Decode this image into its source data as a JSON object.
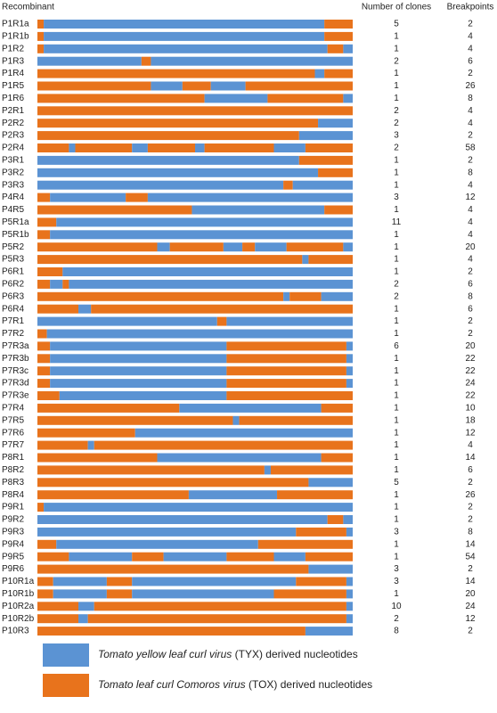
{
  "header": {
    "recombinant": "Recombinant",
    "clones": "Number of clones",
    "breakpoints": "Breakpoints"
  },
  "legend": [
    {
      "name": "Tomato yellow leaf curl virus",
      "suffix": "(TYX) derived nucleotides",
      "color": "#5b93d3"
    },
    {
      "name": "Tomato leaf curl Comoros virus",
      "suffix": "(TOX) derived nucleotides",
      "color": "#e8731c"
    }
  ],
  "xlim": [
    0,
    100
  ],
  "rows": [
    {
      "label": "P1R1a",
      "clones": 5,
      "breakpoints": 2,
      "segments": [
        [
          1,
          0,
          2
        ],
        [
          0,
          2,
          91
        ],
        [
          1,
          91,
          100
        ]
      ]
    },
    {
      "label": "P1R1b",
      "clones": 1,
      "breakpoints": 4,
      "segments": [
        [
          1,
          0,
          2
        ],
        [
          0,
          2,
          91
        ],
        [
          1,
          91,
          100
        ]
      ]
    },
    {
      "label": "P1R2",
      "clones": 1,
      "breakpoints": 4,
      "segments": [
        [
          1,
          0,
          2
        ],
        [
          0,
          2,
          92
        ],
        [
          1,
          92,
          97
        ],
        [
          0,
          97,
          100
        ]
      ]
    },
    {
      "label": "P1R3",
      "clones": 2,
      "breakpoints": 6,
      "segments": [
        [
          0,
          0,
          33
        ],
        [
          1,
          33,
          36
        ],
        [
          0,
          36,
          100
        ]
      ]
    },
    {
      "label": "P1R4",
      "clones": 1,
      "breakpoints": 2,
      "segments": [
        [
          1,
          0,
          88
        ],
        [
          0,
          88,
          91
        ],
        [
          1,
          91,
          100
        ]
      ]
    },
    {
      "label": "P1R5",
      "clones": 1,
      "breakpoints": 26,
      "segments": [
        [
          1,
          0,
          36
        ],
        [
          0,
          36,
          46
        ],
        [
          1,
          46,
          55
        ],
        [
          0,
          55,
          66
        ],
        [
          1,
          66,
          100
        ]
      ]
    },
    {
      "label": "P1R6",
      "clones": 1,
      "breakpoints": 8,
      "segments": [
        [
          1,
          0,
          53
        ],
        [
          0,
          53,
          73
        ],
        [
          1,
          73,
          97
        ],
        [
          0,
          97,
          100
        ]
      ]
    },
    {
      "label": "P2R1",
      "clones": 2,
      "breakpoints": 4,
      "segments": [
        [
          1,
          0,
          100
        ]
      ]
    },
    {
      "label": "P2R2",
      "clones": 2,
      "breakpoints": 4,
      "segments": [
        [
          1,
          0,
          89
        ],
        [
          0,
          89,
          100
        ]
      ]
    },
    {
      "label": "P2R3",
      "clones": 3,
      "breakpoints": 2,
      "segments": [
        [
          1,
          0,
          83
        ],
        [
          0,
          83,
          100
        ]
      ]
    },
    {
      "label": "P2R4",
      "clones": 2,
      "breakpoints": 58,
      "segments": [
        [
          1,
          0,
          10
        ],
        [
          0,
          10,
          12
        ],
        [
          1,
          12,
          30
        ],
        [
          0,
          30,
          35
        ],
        [
          1,
          35,
          50
        ],
        [
          0,
          50,
          53
        ],
        [
          1,
          53,
          75
        ],
        [
          0,
          75,
          85
        ],
        [
          1,
          85,
          100
        ]
      ]
    },
    {
      "label": "P3R1",
      "clones": 1,
      "breakpoints": 2,
      "segments": [
        [
          0,
          0,
          83
        ],
        [
          1,
          83,
          100
        ]
      ]
    },
    {
      "label": "P3R2",
      "clones": 1,
      "breakpoints": 8,
      "segments": [
        [
          0,
          0,
          89
        ],
        [
          1,
          89,
          100
        ]
      ]
    },
    {
      "label": "P3R3",
      "clones": 1,
      "breakpoints": 4,
      "segments": [
        [
          0,
          0,
          78
        ],
        [
          1,
          78,
          81
        ],
        [
          0,
          81,
          100
        ]
      ]
    },
    {
      "label": "P4R4",
      "clones": 3,
      "breakpoints": 12,
      "segments": [
        [
          1,
          0,
          4
        ],
        [
          0,
          4,
          28
        ],
        [
          1,
          28,
          35
        ],
        [
          0,
          35,
          100
        ]
      ]
    },
    {
      "label": "P4R5",
      "clones": 1,
      "breakpoints": 4,
      "segments": [
        [
          1,
          0,
          49
        ],
        [
          0,
          49,
          91
        ],
        [
          1,
          91,
          100
        ]
      ]
    },
    {
      "label": "P5R1a",
      "clones": 11,
      "breakpoints": 4,
      "segments": [
        [
          1,
          0,
          6
        ],
        [
          0,
          6,
          100
        ]
      ]
    },
    {
      "label": "P5R1b",
      "clones": 1,
      "breakpoints": 4,
      "segments": [
        [
          1,
          0,
          4
        ],
        [
          0,
          4,
          100
        ]
      ]
    },
    {
      "label": "P5R2",
      "clones": 1,
      "breakpoints": 20,
      "segments": [
        [
          1,
          0,
          38
        ],
        [
          0,
          38,
          42
        ],
        [
          1,
          42,
          59
        ],
        [
          0,
          59,
          65
        ],
        [
          1,
          65,
          69
        ],
        [
          0,
          69,
          79
        ],
        [
          1,
          79,
          97
        ],
        [
          0,
          97,
          100
        ]
      ]
    },
    {
      "label": "P5R3",
      "clones": 1,
      "breakpoints": 4,
      "segments": [
        [
          1,
          0,
          84
        ],
        [
          0,
          84,
          86
        ],
        [
          1,
          86,
          100
        ]
      ]
    },
    {
      "label": "P6R1",
      "clones": 1,
      "breakpoints": 2,
      "segments": [
        [
          1,
          0,
          8
        ],
        [
          0,
          8,
          100
        ]
      ]
    },
    {
      "label": "P6R2",
      "clones": 2,
      "breakpoints": 6,
      "segments": [
        [
          1,
          0,
          4
        ],
        [
          0,
          4,
          8
        ],
        [
          1,
          8,
          10
        ],
        [
          0,
          10,
          100
        ]
      ]
    },
    {
      "label": "P6R3",
      "clones": 2,
      "breakpoints": 8,
      "segments": [
        [
          1,
          0,
          78
        ],
        [
          0,
          78,
          80
        ],
        [
          1,
          80,
          90
        ],
        [
          0,
          90,
          100
        ]
      ]
    },
    {
      "label": "P6R4",
      "clones": 1,
      "breakpoints": 6,
      "segments": [
        [
          1,
          0,
          13
        ],
        [
          0,
          13,
          17
        ],
        [
          1,
          17,
          100
        ]
      ]
    },
    {
      "label": "P7R1",
      "clones": 1,
      "breakpoints": 2,
      "segments": [
        [
          0,
          0,
          57
        ],
        [
          1,
          57,
          60
        ],
        [
          0,
          60,
          100
        ]
      ]
    },
    {
      "label": "P7R2",
      "clones": 1,
      "breakpoints": 2,
      "segments": [
        [
          1,
          0,
          3
        ],
        [
          0,
          3,
          100
        ]
      ]
    },
    {
      "label": "P7R3a",
      "clones": 6,
      "breakpoints": 20,
      "segments": [
        [
          1,
          0,
          4
        ],
        [
          0,
          4,
          60
        ],
        [
          1,
          60,
          98
        ],
        [
          0,
          98,
          100
        ]
      ]
    },
    {
      "label": "P7R3b",
      "clones": 1,
      "breakpoints": 22,
      "segments": [
        [
          1,
          0,
          4
        ],
        [
          0,
          4,
          60
        ],
        [
          1,
          60,
          98
        ],
        [
          0,
          98,
          100
        ]
      ]
    },
    {
      "label": "P7R3c",
      "clones": 1,
      "breakpoints": 22,
      "segments": [
        [
          1,
          0,
          4
        ],
        [
          0,
          4,
          60
        ],
        [
          1,
          60,
          98
        ],
        [
          0,
          98,
          100
        ]
      ]
    },
    {
      "label": "P7R3d",
      "clones": 1,
      "breakpoints": 24,
      "segments": [
        [
          1,
          0,
          4
        ],
        [
          0,
          4,
          60
        ],
        [
          1,
          60,
          98
        ],
        [
          0,
          98,
          100
        ]
      ]
    },
    {
      "label": "P7R3e",
      "clones": 1,
      "breakpoints": 22,
      "segments": [
        [
          1,
          0,
          7
        ],
        [
          0,
          7,
          60
        ],
        [
          1,
          60,
          100
        ]
      ]
    },
    {
      "label": "P7R4",
      "clones": 1,
      "breakpoints": 10,
      "segments": [
        [
          1,
          0,
          45
        ],
        [
          0,
          45,
          90
        ],
        [
          1,
          90,
          100
        ]
      ]
    },
    {
      "label": "P7R5",
      "clones": 1,
      "breakpoints": 18,
      "segments": [
        [
          1,
          0,
          62
        ],
        [
          0,
          62,
          64
        ],
        [
          1,
          64,
          100
        ]
      ]
    },
    {
      "label": "P7R6",
      "clones": 1,
      "breakpoints": 12,
      "segments": [
        [
          1,
          0,
          31
        ],
        [
          0,
          31,
          100
        ]
      ]
    },
    {
      "label": "P7R7",
      "clones": 1,
      "breakpoints": 4,
      "segments": [
        [
          1,
          0,
          16
        ],
        [
          0,
          16,
          18
        ],
        [
          1,
          18,
          100
        ]
      ]
    },
    {
      "label": "P8R1",
      "clones": 1,
      "breakpoints": 14,
      "segments": [
        [
          1,
          0,
          38
        ],
        [
          0,
          38,
          90
        ],
        [
          1,
          90,
          100
        ]
      ]
    },
    {
      "label": "P8R2",
      "clones": 1,
      "breakpoints": 6,
      "segments": [
        [
          1,
          0,
          72
        ],
        [
          0,
          72,
          74
        ],
        [
          1,
          74,
          100
        ]
      ]
    },
    {
      "label": "P8R3",
      "clones": 5,
      "breakpoints": 2,
      "segments": [
        [
          1,
          0,
          86
        ],
        [
          0,
          86,
          100
        ]
      ]
    },
    {
      "label": "P8R4",
      "clones": 1,
      "breakpoints": 26,
      "segments": [
        [
          1,
          0,
          48
        ],
        [
          0,
          48,
          76
        ],
        [
          1,
          76,
          100
        ]
      ]
    },
    {
      "label": "P9R1",
      "clones": 1,
      "breakpoints": 2,
      "segments": [
        [
          1,
          0,
          2
        ],
        [
          0,
          2,
          100
        ]
      ]
    },
    {
      "label": "P9R2",
      "clones": 1,
      "breakpoints": 2,
      "segments": [
        [
          0,
          0,
          92
        ],
        [
          1,
          92,
          97
        ],
        [
          0,
          97,
          100
        ]
      ]
    },
    {
      "label": "P9R3",
      "clones": 3,
      "breakpoints": 8,
      "segments": [
        [
          0,
          0,
          82
        ],
        [
          1,
          82,
          98
        ],
        [
          0,
          98,
          100
        ]
      ]
    },
    {
      "label": "P9R4",
      "clones": 1,
      "breakpoints": 14,
      "segments": [
        [
          1,
          0,
          6
        ],
        [
          0,
          6,
          70
        ],
        [
          1,
          70,
          100
        ]
      ]
    },
    {
      "label": "P9R5",
      "clones": 1,
      "breakpoints": 54,
      "segments": [
        [
          1,
          0,
          10
        ],
        [
          0,
          10,
          30
        ],
        [
          1,
          30,
          40
        ],
        [
          0,
          40,
          60
        ],
        [
          1,
          60,
          75
        ],
        [
          0,
          75,
          85
        ],
        [
          1,
          85,
          100
        ]
      ]
    },
    {
      "label": "P9R6",
      "clones": 3,
      "breakpoints": 2,
      "segments": [
        [
          1,
          0,
          86
        ],
        [
          0,
          86,
          100
        ]
      ]
    },
    {
      "label": "P10R1a",
      "clones": 3,
      "breakpoints": 14,
      "segments": [
        [
          1,
          0,
          5
        ],
        [
          0,
          5,
          22
        ],
        [
          1,
          22,
          30
        ],
        [
          0,
          30,
          82
        ],
        [
          1,
          82,
          98
        ],
        [
          0,
          98,
          100
        ]
      ]
    },
    {
      "label": "P10R1b",
      "clones": 1,
      "breakpoints": 20,
      "segments": [
        [
          1,
          0,
          5
        ],
        [
          0,
          5,
          22
        ],
        [
          1,
          22,
          30
        ],
        [
          0,
          30,
          75
        ],
        [
          1,
          75,
          98
        ],
        [
          0,
          98,
          100
        ]
      ]
    },
    {
      "label": "P10R2a",
      "clones": 10,
      "breakpoints": 24,
      "segments": [
        [
          1,
          0,
          13
        ],
        [
          0,
          13,
          18
        ],
        [
          1,
          18,
          98
        ],
        [
          0,
          98,
          100
        ]
      ]
    },
    {
      "label": "P10R2b",
      "clones": 2,
      "breakpoints": 12,
      "segments": [
        [
          1,
          0,
          13
        ],
        [
          0,
          13,
          16
        ],
        [
          1,
          16,
          98
        ],
        [
          0,
          98,
          100
        ]
      ]
    },
    {
      "label": "P10R3",
      "clones": 8,
      "breakpoints": 2,
      "segments": [
        [
          1,
          0,
          85
        ],
        [
          0,
          85,
          100
        ]
      ]
    }
  ]
}
